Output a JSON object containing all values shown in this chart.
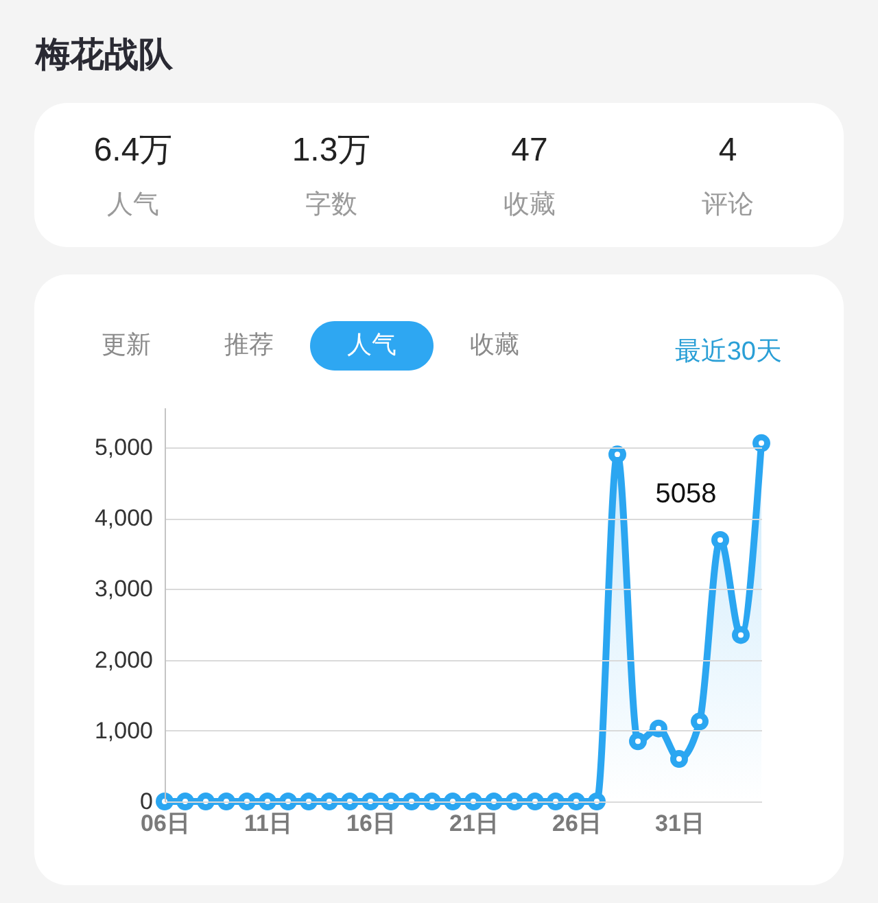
{
  "chart_data": [
    {
      "type": "other",
      "title": "梅花战队",
      "annotations": [
        "6.4万",
        "人气",
        "1.3万",
        "字数",
        "47",
        "收藏",
        "4",
        "评论"
      ]
    },
    {
      "type": "area",
      "categories": [
        "06日",
        null,
        null,
        null,
        null,
        "11日",
        null,
        null,
        null,
        null,
        "16日",
        null,
        null,
        null,
        null,
        "21日",
        null,
        null,
        null,
        null,
        "26日",
        null,
        null,
        null,
        null,
        "31日",
        null,
        null,
        null,
        null
      ],
      "series": [
        {
          "color": "#2ba6f1",
          "values": [
            0,
            0,
            0,
            0,
            0,
            0,
            0,
            0,
            0,
            0,
            0,
            0,
            0,
            0,
            0,
            0,
            0,
            0,
            0,
            0,
            0,
            0,
            4900,
            850,
            1030,
            600,
            1130,
            3690,
            2350,
            5058
          ]
        }
      ],
      "ylim": [
        0,
        5560
      ],
      "yticks": [
        0,
        {
          "value": 1000,
          "label": "1,000"
        },
        {
          "value": 2000,
          "label": "2,000"
        },
        {
          "value": 3000,
          "label": "3,000"
        },
        {
          "value": 4000,
          "label": "4,000"
        },
        {
          "value": 5000,
          "label": "5,000"
        }
      ],
      "grid": "y",
      "marker": "circle",
      "annotations": [
        "更新",
        "推荐",
        "人气",
        "收藏",
        "最近30天",
        "5058"
      ]
    }
  ]
}
